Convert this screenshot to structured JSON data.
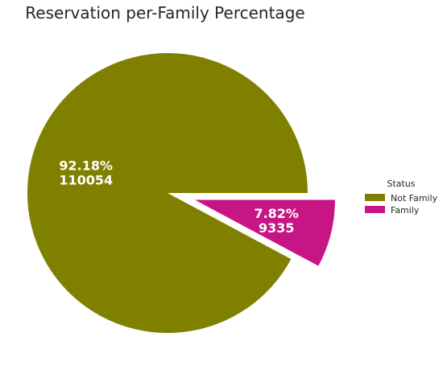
{
  "chart_data": {
    "type": "pie",
    "title": "Reservation per-Family Percentage",
    "categories": [
      "Not Family",
      "Family"
    ],
    "values": [
      110054,
      9335
    ],
    "percentages": [
      "92.18%",
      "7.82%"
    ],
    "value_labels": [
      "110054",
      "9335"
    ],
    "colors": [
      "#808000",
      "#c71585"
    ],
    "exploded": [
      false,
      true
    ],
    "start_angle_deg": 0,
    "direction": "counterclockwise",
    "legend": {
      "title": "Status",
      "entries": [
        "Not Family",
        "Family"
      ],
      "placement": "center-right"
    },
    "label_color": "#ffffff"
  }
}
